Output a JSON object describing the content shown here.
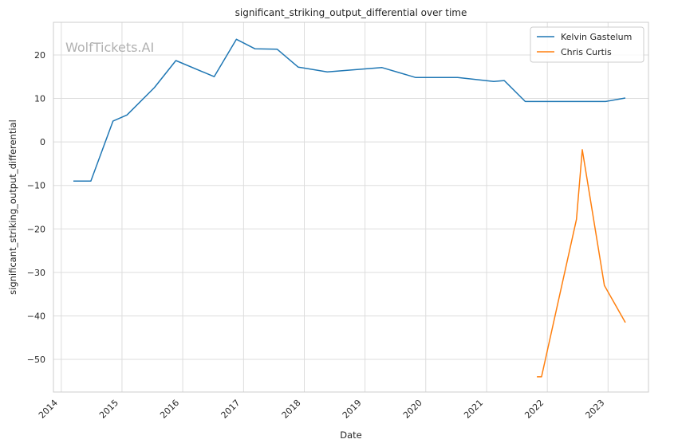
{
  "chart_data": {
    "type": "line",
    "title": "significant_striking_output_differential over time",
    "xlabel": "Date",
    "ylabel": "significant_striking_output_differential",
    "watermark": "WolfTickets.AI",
    "xlim": [
      "2013-11-15",
      "2023-09-01"
    ],
    "ylim": [
      -57.5,
      27.5
    ],
    "x_ticks": [
      "2014",
      "2015",
      "2016",
      "2017",
      "2018",
      "2019",
      "2020",
      "2021",
      "2022",
      "2023"
    ],
    "x_tick_dates": [
      "2014-01-01",
      "2015-01-01",
      "2016-01-01",
      "2017-01-01",
      "2018-01-01",
      "2019-01-01",
      "2020-01-01",
      "2021-01-01",
      "2022-01-01",
      "2023-01-01"
    ],
    "y_ticks": [
      20,
      10,
      0,
      -10,
      -20,
      -30,
      -40,
      -50
    ],
    "y_tick_labels": [
      "20",
      "10",
      "0",
      "−10",
      "−20",
      "−30",
      "−40",
      "−50"
    ],
    "grid": true,
    "legend_position": "top-right",
    "series": [
      {
        "name": "Kelvin Gastelum",
        "color": "#1f77b4",
        "points": [
          {
            "x": "2014-03-15",
            "y": -9.0
          },
          {
            "x": "2014-06-28",
            "y": -9.0
          },
          {
            "x": "2014-11-08",
            "y": 4.8
          },
          {
            "x": "2015-01-31",
            "y": 6.2
          },
          {
            "x": "2015-07-15",
            "y": 12.5
          },
          {
            "x": "2015-11-21",
            "y": 18.7
          },
          {
            "x": "2016-07-08",
            "y": 15.0
          },
          {
            "x": "2016-11-19",
            "y": 23.6
          },
          {
            "x": "2017-03-11",
            "y": 21.4
          },
          {
            "x": "2017-07-22",
            "y": 21.3
          },
          {
            "x": "2017-11-25",
            "y": 17.2
          },
          {
            "x": "2018-05-19",
            "y": 16.1
          },
          {
            "x": "2019-04-13",
            "y": 17.1
          },
          {
            "x": "2019-11-02",
            "y": 14.8
          },
          {
            "x": "2020-07-11",
            "y": 14.8
          },
          {
            "x": "2021-02-13",
            "y": 13.9
          },
          {
            "x": "2021-04-17",
            "y": 14.1
          },
          {
            "x": "2021-08-21",
            "y": 9.3
          },
          {
            "x": "2022-12-17",
            "y": 9.3
          },
          {
            "x": "2023-04-15",
            "y": 10.1
          }
        ]
      },
      {
        "name": "Chris Curtis",
        "color": "#ff7f0e",
        "points": [
          {
            "x": "2021-10-30",
            "y": -54.0
          },
          {
            "x": "2021-11-27",
            "y": -54.0
          },
          {
            "x": "2022-06-25",
            "y": -17.8
          },
          {
            "x": "2022-07-30",
            "y": -1.8
          },
          {
            "x": "2022-12-10",
            "y": -33.0
          },
          {
            "x": "2023-04-15",
            "y": -41.5
          }
        ]
      }
    ]
  }
}
